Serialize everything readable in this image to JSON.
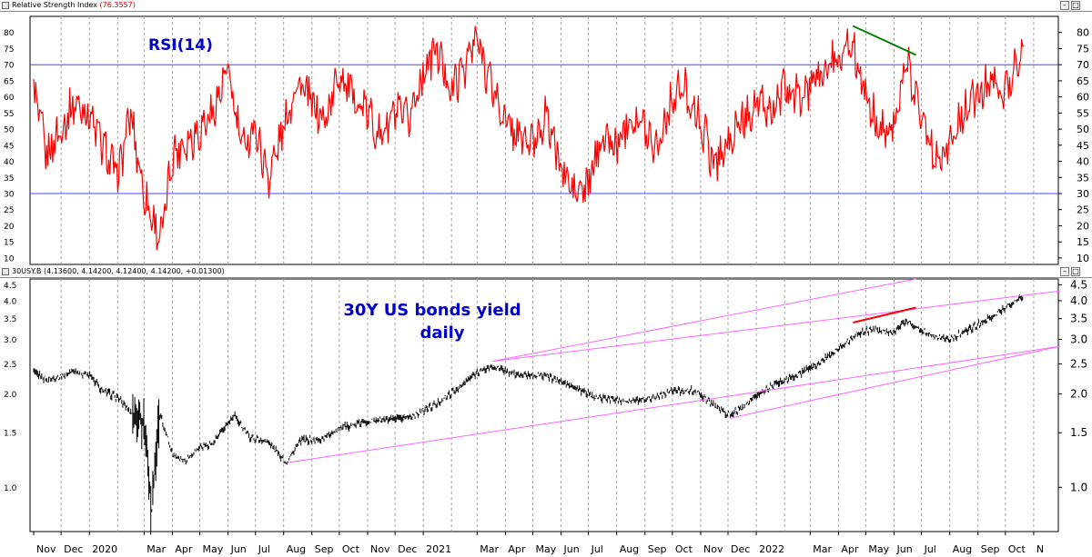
{
  "panels": {
    "rsi": {
      "title": "Relative Strength Index",
      "value": "(76.3557)",
      "label": "RSI(14)"
    },
    "price": {
      "title": "30USY.B (4.13600, 4.14200, 4.12400, 4.14200, +0.01300)",
      "label_line1": "30Y US bonds yield",
      "label_line2": "daily"
    }
  },
  "window_controls": {
    "minimize": "–",
    "maximize": "□"
  },
  "colors": {
    "rsi_line": "#ff0000",
    "price_bars": "#000000",
    "channel": "#ff66ff",
    "levels": "#4444ff",
    "label": "#0000cc",
    "divergence_rsi": "#008000",
    "divergence_price": "#ff0000"
  },
  "chart_data": [
    {
      "type": "line",
      "name": "RSI(14)",
      "yticks": [
        10,
        15,
        20,
        25,
        30,
        35,
        40,
        45,
        50,
        55,
        60,
        65,
        70,
        75,
        80
      ],
      "ylim": [
        8,
        85
      ],
      "levels": [
        30,
        70
      ],
      "x_dates": [
        "2019-11-01",
        "2019-11-15",
        "2019-12-01",
        "2019-12-15",
        "2020-01-01",
        "2020-01-15",
        "2020-02-01",
        "2020-02-15",
        "2020-03-01",
        "2020-03-10",
        "2020-03-20",
        "2020-04-01",
        "2020-04-15",
        "2020-05-01",
        "2020-05-15",
        "2020-06-01",
        "2020-06-15",
        "2020-07-01",
        "2020-07-15",
        "2020-08-01",
        "2020-08-15",
        "2020-09-01",
        "2020-09-15",
        "2020-10-01",
        "2020-10-15",
        "2020-11-01",
        "2020-11-15",
        "2020-12-01",
        "2020-12-15",
        "2021-01-01",
        "2021-01-15",
        "2021-02-01",
        "2021-02-15",
        "2021-03-01",
        "2021-03-15",
        "2021-04-01",
        "2021-04-15",
        "2021-05-01",
        "2021-05-15",
        "2021-06-01",
        "2021-06-15",
        "2021-07-01",
        "2021-07-15",
        "2021-08-01",
        "2021-08-15",
        "2021-09-01",
        "2021-09-15",
        "2021-10-01",
        "2021-10-15",
        "2021-11-01",
        "2021-11-15",
        "2021-12-01",
        "2021-12-15",
        "2022-01-01",
        "2022-01-15",
        "2022-02-01",
        "2022-02-15",
        "2022-03-01",
        "2022-03-15",
        "2022-04-01",
        "2022-04-15",
        "2022-05-01",
        "2022-05-15",
        "2022-06-01",
        "2022-06-15",
        "2022-07-01",
        "2022-07-15",
        "2022-08-01",
        "2022-08-15",
        "2022-09-01",
        "2022-09-15",
        "2022-10-01",
        "2022-10-21"
      ],
      "values": [
        62,
        42,
        50,
        58,
        55,
        45,
        35,
        55,
        30,
        22,
        16,
        42,
        46,
        50,
        55,
        68,
        45,
        50,
        35,
        50,
        65,
        58,
        52,
        68,
        60,
        55,
        48,
        55,
        52,
        68,
        75,
        62,
        70,
        78,
        65,
        52,
        48,
        45,
        55,
        38,
        30,
        32,
        48,
        44,
        55,
        50,
        45,
        60,
        62,
        52,
        40,
        45,
        52,
        58,
        55,
        62,
        60,
        62,
        68,
        72,
        78,
        60,
        50,
        52,
        70,
        55,
        42,
        45,
        55,
        60,
        65,
        62,
        76
      ]
    },
    {
      "type": "line",
      "name": "30USY.B",
      "scale": "log",
      "yticks": [
        1.0,
        1.5,
        2.0,
        2.5,
        3.0,
        3.5,
        4.0,
        4.5
      ],
      "ylim": [
        0.72,
        4.7
      ],
      "x_dates": [
        "2019-11-01",
        "2019-11-15",
        "2019-12-01",
        "2019-12-15",
        "2020-01-01",
        "2020-01-15",
        "2020-02-01",
        "2020-02-15",
        "2020-03-01",
        "2020-03-09",
        "2020-03-18",
        "2020-04-01",
        "2020-04-15",
        "2020-05-01",
        "2020-05-15",
        "2020-06-08",
        "2020-06-25",
        "2020-07-15",
        "2020-08-04",
        "2020-08-20",
        "2020-09-10",
        "2020-10-01",
        "2020-10-20",
        "2020-11-10",
        "2020-12-01",
        "2020-12-20",
        "2021-01-15",
        "2021-02-10",
        "2021-03-01",
        "2021-03-18",
        "2021-04-15",
        "2021-05-15",
        "2021-06-15",
        "2021-07-10",
        "2021-08-01",
        "2021-08-20",
        "2021-09-10",
        "2021-10-01",
        "2021-10-25",
        "2021-11-15",
        "2021-12-03",
        "2021-12-20",
        "2022-01-15",
        "2022-02-15",
        "2022-03-10",
        "2022-04-01",
        "2022-04-20",
        "2022-05-09",
        "2022-06-01",
        "2022-06-14",
        "2022-07-01",
        "2022-07-20",
        "2022-08-01",
        "2022-08-20",
        "2022-09-10",
        "2022-09-25",
        "2022-10-21"
      ],
      "values": [
        2.35,
        2.22,
        2.28,
        2.38,
        2.3,
        2.05,
        1.95,
        1.75,
        1.62,
        0.8,
        1.72,
        1.28,
        1.22,
        1.35,
        1.38,
        1.7,
        1.45,
        1.4,
        1.2,
        1.42,
        1.42,
        1.55,
        1.6,
        1.65,
        1.65,
        1.7,
        1.85,
        2.1,
        2.35,
        2.45,
        2.3,
        2.3,
        2.1,
        1.95,
        1.92,
        1.9,
        1.95,
        2.05,
        2.05,
        1.85,
        1.7,
        1.85,
        2.1,
        2.3,
        2.5,
        2.8,
        3.1,
        3.25,
        3.15,
        3.45,
        3.2,
        3.05,
        3.0,
        3.2,
        3.45,
        3.7,
        4.142
      ]
    }
  ],
  "x_axis": {
    "labels": [
      "Nov",
      "Dec",
      "2020",
      "Mar",
      "Apr",
      "May",
      "Jun",
      "Jul",
      "Aug",
      "Sep",
      "Oct",
      "Nov",
      "Dec",
      "2021",
      "Mar",
      "Apr",
      "May",
      "Jun",
      "Jul",
      "Aug",
      "Sep",
      "Oct",
      "Nov",
      "Dec",
      "2022",
      "Mar",
      "Apr",
      "May",
      "Jun",
      "Jul",
      "Aug",
      "Sep",
      "Oct",
      "N"
    ],
    "label_dates": [
      "2019-11-01",
      "2019-12-01",
      "2020-01-01",
      "2020-03-01",
      "2020-04-01",
      "2020-05-01",
      "2020-06-01",
      "2020-07-01",
      "2020-08-01",
      "2020-09-01",
      "2020-10-01",
      "2020-11-01",
      "2020-12-01",
      "2021-01-01",
      "2021-03-01",
      "2021-04-01",
      "2021-05-01",
      "2021-06-01",
      "2021-07-01",
      "2021-08-01",
      "2021-09-01",
      "2021-10-01",
      "2021-11-01",
      "2021-12-01",
      "2022-01-01",
      "2022-03-01",
      "2022-04-01",
      "2022-05-01",
      "2022-06-01",
      "2022-07-01",
      "2022-08-01",
      "2022-09-01",
      "2022-10-01",
      "2022-11-01"
    ],
    "gridline_dates": [
      "2019-12-01",
      "2020-01-01",
      "2020-02-01",
      "2020-03-01",
      "2020-04-01",
      "2020-05-01",
      "2020-06-01",
      "2020-07-01",
      "2020-08-01",
      "2020-09-01",
      "2020-10-01",
      "2020-11-01",
      "2020-12-01",
      "2021-01-01",
      "2021-02-01",
      "2021-03-01",
      "2021-04-01",
      "2021-05-01",
      "2021-06-01",
      "2021-07-01",
      "2021-08-01",
      "2021-09-01",
      "2021-10-01",
      "2021-11-01",
      "2021-12-01",
      "2022-01-01",
      "2022-02-01",
      "2022-03-01",
      "2022-04-01",
      "2022-05-01",
      "2022-06-01",
      "2022-07-01",
      "2022-08-01",
      "2022-09-01",
      "2022-10-01",
      "2022-11-01"
    ]
  },
  "annotations": {
    "price_channel": [
      {
        "name": "lower",
        "from": [
          "2020-08-04",
          1.2
        ],
        "to": [
          "2022-11-30",
          2.85
        ]
      },
      {
        "name": "middle",
        "from": [
          "2021-03-18",
          2.55
        ],
        "to": [
          "2022-11-30",
          4.3
        ]
      },
      {
        "name": "upper",
        "from": [
          "2021-03-18",
          2.55
        ],
        "to": [
          "2022-06-25",
          4.7
        ]
      },
      {
        "name": "bottom",
        "from": [
          "2021-12-03",
          1.67
        ],
        "to": [
          "2022-11-30",
          2.85
        ]
      }
    ],
    "rsi_divergence": {
      "from": [
        "2022-04-17",
        82
      ],
      "to": [
        "2022-06-25",
        73
      ]
    },
    "price_divergence": {
      "from": [
        "2022-04-17",
        3.4
      ],
      "to": [
        "2022-06-25",
        3.8
      ]
    }
  }
}
